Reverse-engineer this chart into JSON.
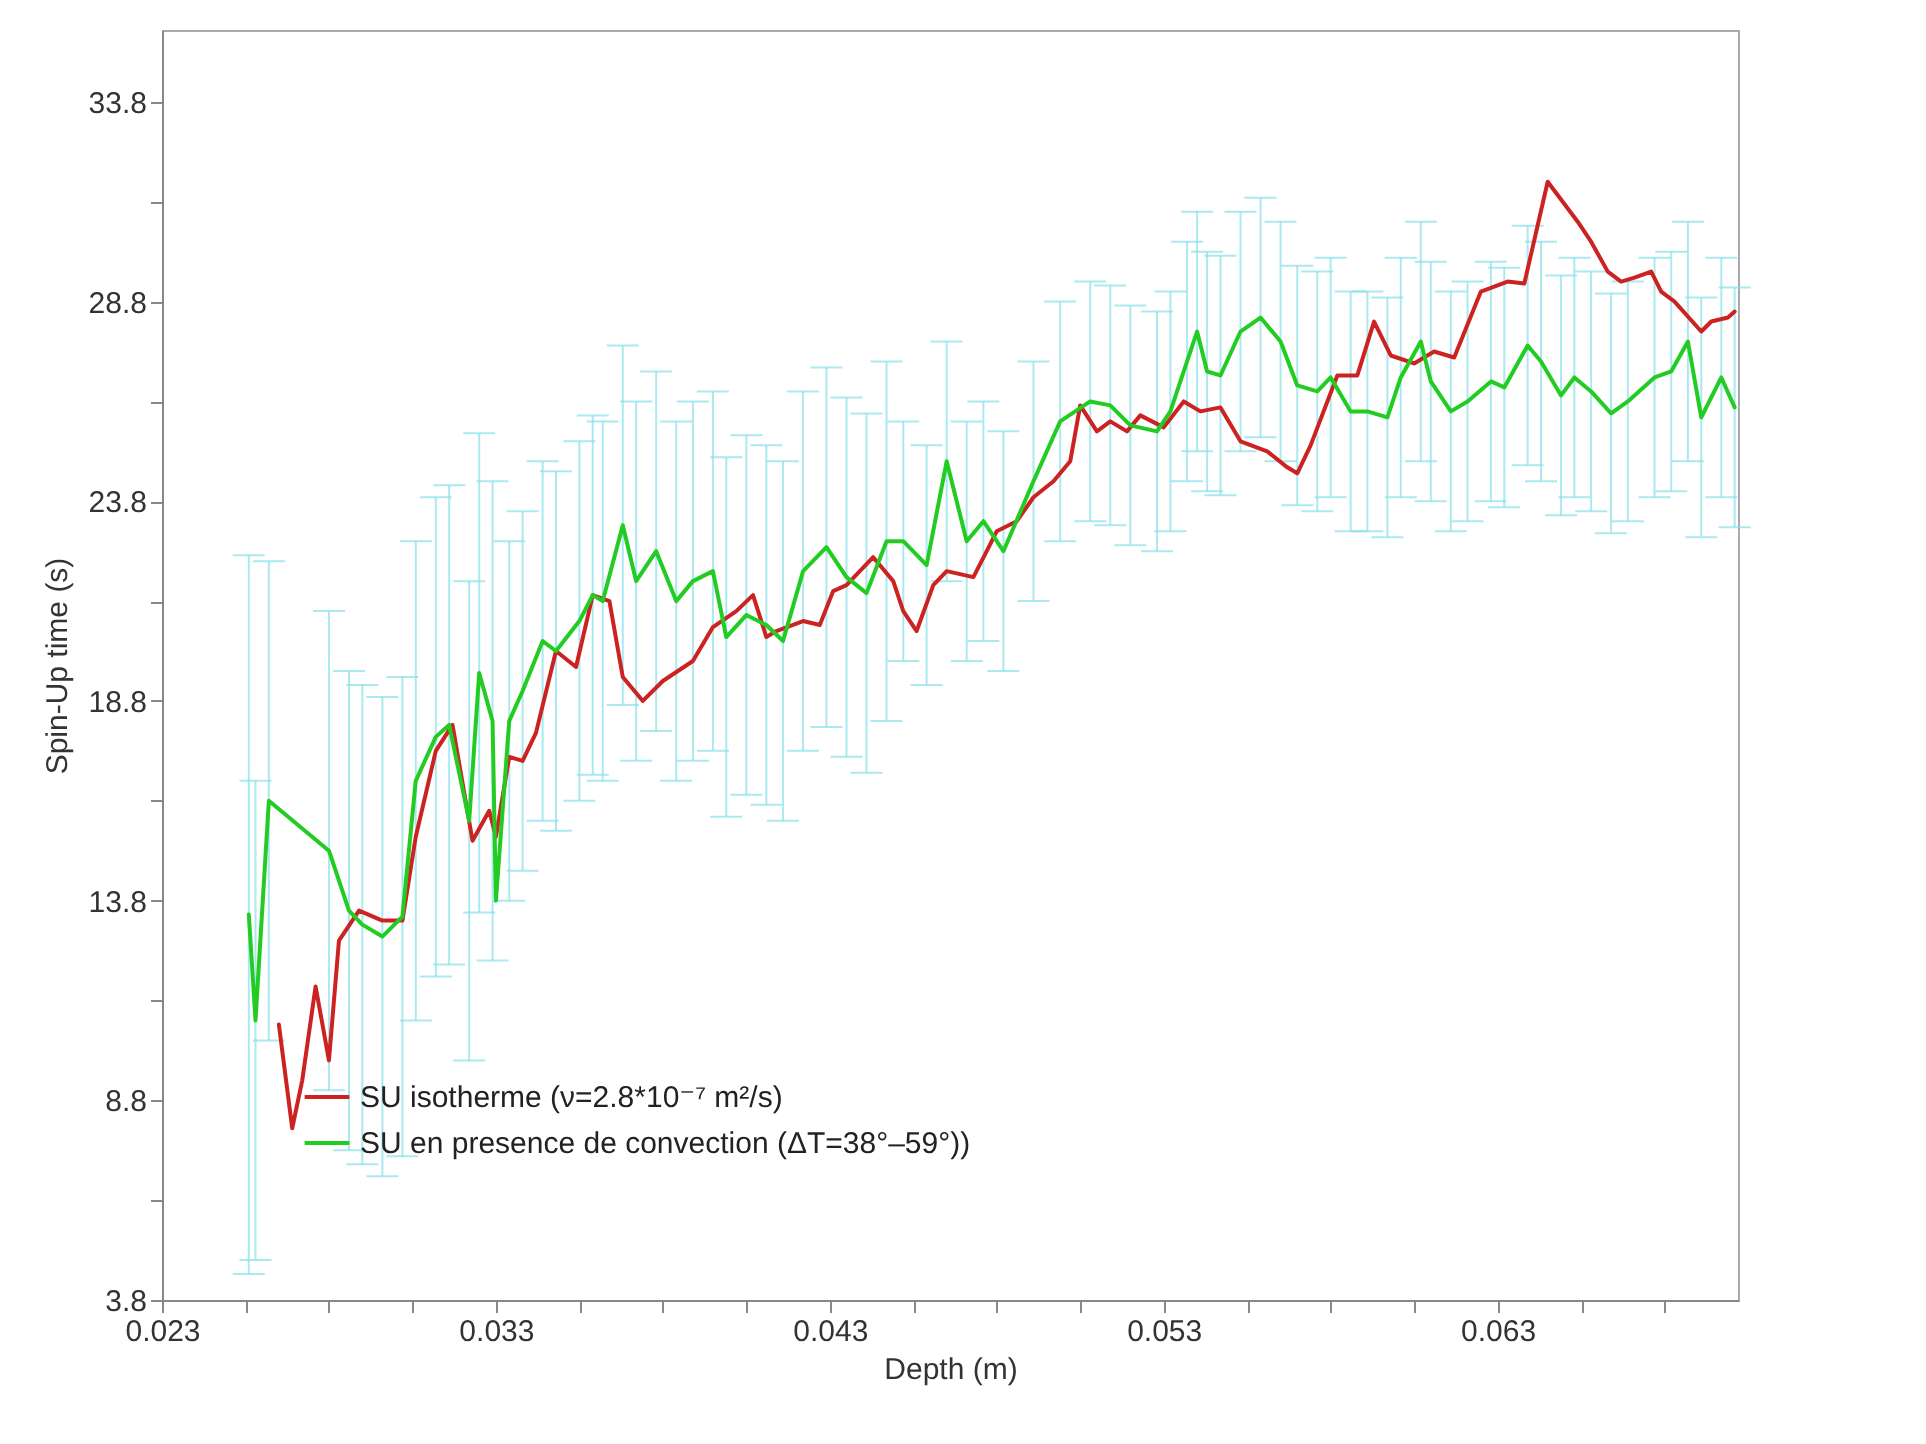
{
  "chart_data": {
    "type": "line",
    "xlabel": "Depth (m)",
    "ylabel": "Spin-Up time (s)",
    "xlim": [
      0.023,
      0.0702
    ],
    "ylim": [
      3.8,
      35.6
    ],
    "xticks": [
      0.023,
      {
        "value": 0.0255,
        "label": null
      },
      {
        "value": 0.028,
        "label": null
      },
      {
        "value": 0.0305,
        "label": null
      },
      0.033,
      {
        "value": 0.0355,
        "label": null
      },
      {
        "value": 0.038,
        "label": null
      },
      {
        "value": 0.0405,
        "label": null
      },
      0.043,
      {
        "value": 0.0455,
        "label": null
      },
      {
        "value": 0.048,
        "label": null
      },
      {
        "value": 0.0505,
        "label": null
      },
      0.053,
      {
        "value": 0.0555,
        "label": null
      },
      {
        "value": 0.058,
        "label": null
      },
      {
        "value": 0.0605,
        "label": null
      },
      0.063,
      {
        "value": 0.0655,
        "label": null
      },
      {
        "value": 0.068,
        "label": null
      }
    ],
    "yticks": [
      3.8,
      {
        "value": 6.3,
        "label": null
      },
      8.8,
      {
        "value": 11.3,
        "label": null
      },
      13.8,
      {
        "value": 16.3,
        "label": null
      },
      18.8,
      {
        "value": 21.3,
        "label": null
      },
      23.8,
      {
        "value": 26.3,
        "label": null
      },
      28.8,
      {
        "value": 31.3,
        "label": null
      },
      33.8
    ],
    "grid": false,
    "legend": "bottom left",
    "marker": "none",
    "line_style": "solid",
    "series": [
      {
        "name": "SU isotherme  (ν=2.8*10⁻⁷ m²/s)",
        "color": "#cc2222",
        "x": [
          0.0265,
          0.0269,
          0.0272,
          0.0276,
          0.028,
          0.0283,
          0.0289,
          0.0296,
          0.0302,
          0.0306,
          0.0312,
          0.0317,
          0.0323,
          0.0328,
          0.033,
          0.0334,
          0.0338,
          0.0342,
          0.0348,
          0.0354,
          0.0359,
          0.0364,
          0.0368,
          0.0374,
          0.038,
          0.0389,
          0.0395,
          0.0402,
          0.0407,
          0.0411,
          0.0414,
          0.0422,
          0.0427,
          0.0431,
          0.0435,
          0.0443,
          0.0449,
          0.0452,
          0.0456,
          0.0461,
          0.0465,
          0.0473,
          0.0477,
          0.048,
          0.0486,
          0.0491,
          0.0497,
          0.0502,
          0.0505,
          0.051,
          0.0514,
          0.0519,
          0.0523,
          0.053,
          0.0536,
          0.0541,
          0.0547,
          0.0553,
          0.0561,
          0.0567,
          0.057,
          0.0574,
          0.0582,
          0.0588,
          0.0593,
          0.0598,
          0.0605,
          0.0611,
          0.0617,
          0.0625,
          0.0633,
          0.0638,
          0.0645,
          0.0654,
          0.0658,
          0.0663,
          0.0667,
          0.0671,
          0.0676,
          0.0679,
          0.0683,
          0.0691,
          0.0694,
          0.0699,
          0.0701
        ],
        "values": [
          10.7,
          8.1,
          9.3,
          11.65,
          9.8,
          12.8,
          13.55,
          13.3,
          13.3,
          15.4,
          17.55,
          18.2,
          15.3,
          16.05,
          15.4,
          17.4,
          17.3,
          18.0,
          20.05,
          19.65,
          21.45,
          21.3,
          19.4,
          18.8,
          19.3,
          19.8,
          20.65,
          21.05,
          21.45,
          20.4,
          20.55,
          20.8,
          20.7,
          21.55,
          21.7,
          22.4,
          21.8,
          21.05,
          20.55,
          21.7,
          22.05,
          21.9,
          22.55,
          23.05,
          23.3,
          23.9,
          24.3,
          24.8,
          26.2,
          25.55,
          25.8,
          25.55,
          25.95,
          25.65,
          26.3,
          26.05,
          26.15,
          25.3,
          25.05,
          24.65,
          24.5,
          25.2,
          26.95,
          26.95,
          28.3,
          27.45,
          27.25,
          27.55,
          27.4,
          29.05,
          29.3,
          29.25,
          31.8,
          30.8,
          30.3,
          29.55,
          29.3,
          29.4,
          29.55,
          29.05,
          28.8,
          28.05,
          28.3,
          28.4,
          28.55
        ]
      },
      {
        "name": "SU en presence de convection (ΔT=38°–59°))",
        "color": "#22cc22",
        "x": [
          0.0256,
          0.0258,
          0.0262,
          0.028,
          0.0286,
          0.029,
          0.0296,
          0.0302,
          0.0306,
          0.0312,
          0.0316,
          0.0322,
          0.0325,
          0.0329,
          0.033,
          0.0334,
          0.0338,
          0.0344,
          0.0348,
          0.0355,
          0.0359,
          0.0362,
          0.0368,
          0.0372,
          0.0378,
          0.0384,
          0.0389,
          0.0395,
          0.0399,
          0.0405,
          0.0411,
          0.0416,
          0.0422,
          0.0429,
          0.0435,
          0.0441,
          0.0447,
          0.0452,
          0.0459,
          0.0465,
          0.0471,
          0.0476,
          0.0482,
          0.0491,
          0.0499,
          0.0508,
          0.0514,
          0.052,
          0.0528,
          0.0532,
          0.0537,
          0.054,
          0.0543,
          0.0547,
          0.0553,
          0.0559,
          0.0565,
          0.057,
          0.0576,
          0.058,
          0.0586,
          0.0591,
          0.0597,
          0.0601,
          0.0607,
          0.061,
          0.0616,
          0.0621,
          0.0628,
          0.0632,
          0.0639,
          0.0643,
          0.0649,
          0.0653,
          0.0658,
          0.0664,
          0.0669,
          0.0677,
          0.0682,
          0.0687,
          0.0691,
          0.0697,
          0.0701
        ],
        "values": [
          13.45,
          10.8,
          16.3,
          15.05,
          13.55,
          13.2,
          12.9,
          13.4,
          16.8,
          17.9,
          18.2,
          15.8,
          19.5,
          18.3,
          13.8,
          18.3,
          19.05,
          20.3,
          20.05,
          20.8,
          21.45,
          21.3,
          23.2,
          21.8,
          22.55,
          21.3,
          21.8,
          22.05,
          20.4,
          20.95,
          20.7,
          20.3,
          22.05,
          22.65,
          21.9,
          21.5,
          22.8,
          22.8,
          22.2,
          24.8,
          22.8,
          23.3,
          22.55,
          24.3,
          25.8,
          26.3,
          26.2,
          25.7,
          25.55,
          26.05,
          27.3,
          28.05,
          27.05,
          26.95,
          28.05,
          28.4,
          27.8,
          26.7,
          26.55,
          26.9,
          26.05,
          26.05,
          25.9,
          26.9,
          27.8,
          26.8,
          26.05,
          26.3,
          26.8,
          26.65,
          27.7,
          27.3,
          26.45,
          26.9,
          26.55,
          26.0,
          26.3,
          26.9,
          27.05,
          27.8,
          25.9,
          26.9,
          26.15
        ],
        "errors": [
          9,
          6,
          6,
          6,
          6,
          6,
          6,
          6,
          6,
          6,
          6,
          6,
          6,
          6,
          null,
          4.5,
          4.5,
          4.5,
          4.5,
          4.5,
          4.5,
          4.5,
          4.5,
          4.5,
          4.5,
          4.5,
          4.5,
          4.5,
          4.5,
          4.5,
          4.5,
          4.5,
          4.5,
          4.5,
          4.5,
          4.5,
          4.5,
          3,
          3,
          3,
          3,
          3,
          3,
          3,
          3,
          3,
          3,
          3,
          3,
          3,
          3,
          3,
          3,
          3,
          3,
          3,
          3,
          3,
          3,
          3,
          3,
          3,
          3,
          3,
          3,
          3,
          3,
          3,
          3,
          3,
          3,
          3,
          3,
          3,
          3,
          3,
          3,
          3,
          3,
          3,
          3,
          3,
          3
        ]
      }
    ]
  }
}
